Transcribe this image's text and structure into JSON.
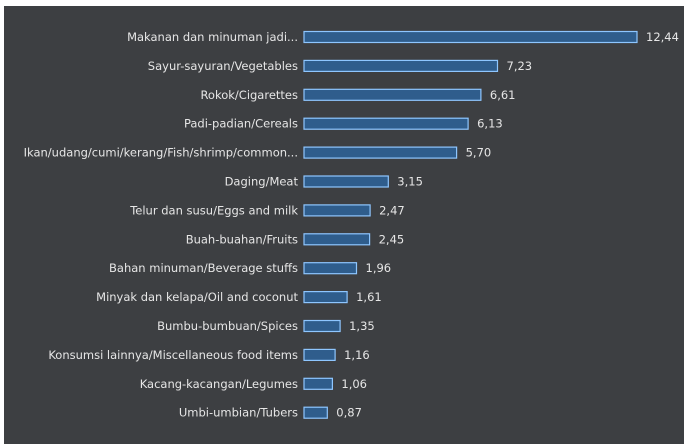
{
  "chart_data": {
    "type": "bar",
    "orientation": "horizontal",
    "categories": [
      "Makanan dan minuman jadi...",
      "Sayur-sayuran/Vegetables",
      "Rokok/Cigarettes",
      "Padi-padian/Cereals",
      "Ikan/udang/cumi/kerang/Fish/shrimp/common...",
      "Daging/Meat",
      "Telur dan susu/Eggs and milk",
      "Buah-buahan/Fruits",
      "Bahan minuman/Beverage stuffs",
      "Minyak dan kelapa/Oil and coconut",
      "Bumbu-bumbuan/Spices",
      "Konsumsi lainnya/Miscellaneous food items",
      "Kacang-kacangan/Legumes",
      "Umbi-umbian/Tubers"
    ],
    "values": [
      12.44,
      7.23,
      6.61,
      6.13,
      5.7,
      3.15,
      2.47,
      2.45,
      1.96,
      1.61,
      1.35,
      1.16,
      1.06,
      0.87
    ],
    "value_labels": [
      "12,44",
      "7,23",
      "6,61",
      "6,13",
      "5,70",
      "3,15",
      "2,47",
      "2,45",
      "1,96",
      "1,61",
      "1,35",
      "1,16",
      "1,06",
      "0,87"
    ],
    "title": "",
    "xlabel": "",
    "ylabel": "",
    "xlim": [
      0,
      12.44
    ],
    "grid": false,
    "legend": "none",
    "colors": {
      "background": "#3d3f42",
      "bar_fill": "#2f5d8c",
      "bar_outline": "#8ec6ff",
      "text": "#e6e6e6"
    }
  }
}
